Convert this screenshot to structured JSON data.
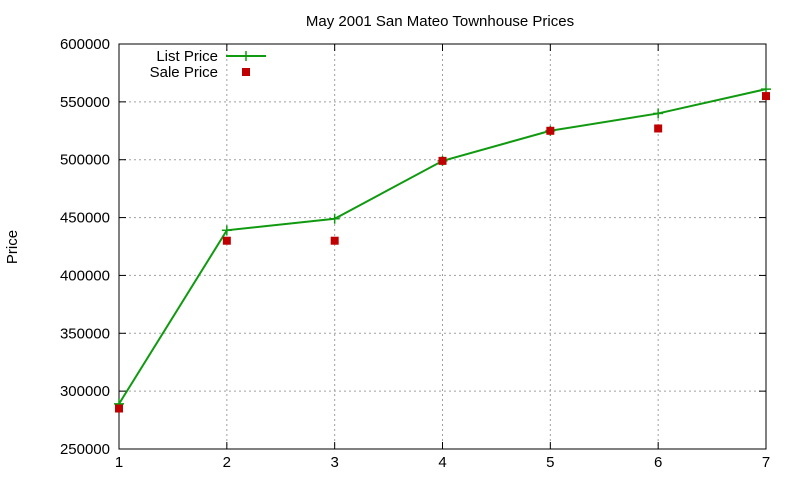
{
  "chart_data": {
    "type": "line",
    "title": "May 2001 San Mateo Townhouse Prices",
    "xlabel": "",
    "ylabel": "Price",
    "x": [
      1,
      2,
      3,
      4,
      5,
      6,
      7
    ],
    "xlim": [
      1,
      7
    ],
    "ylim": [
      250000,
      600000
    ],
    "yticks": [
      250000,
      300000,
      350000,
      400000,
      450000,
      500000,
      550000,
      600000
    ],
    "xticks": [
      1,
      2,
      3,
      4,
      5,
      6,
      7
    ],
    "grid": true,
    "legend_position": "top-left",
    "series": [
      {
        "name": "List Price",
        "style": "lines+points",
        "marker": "plus",
        "color": "#109a10",
        "values": [
          289000,
          439000,
          449000,
          499000,
          525000,
          540000,
          561000
        ]
      },
      {
        "name": "Sale Price",
        "style": "points",
        "marker": "square",
        "color": "#c00000",
        "values": [
          285000,
          430000,
          430000,
          499000,
          525000,
          527000,
          555000
        ]
      }
    ]
  }
}
